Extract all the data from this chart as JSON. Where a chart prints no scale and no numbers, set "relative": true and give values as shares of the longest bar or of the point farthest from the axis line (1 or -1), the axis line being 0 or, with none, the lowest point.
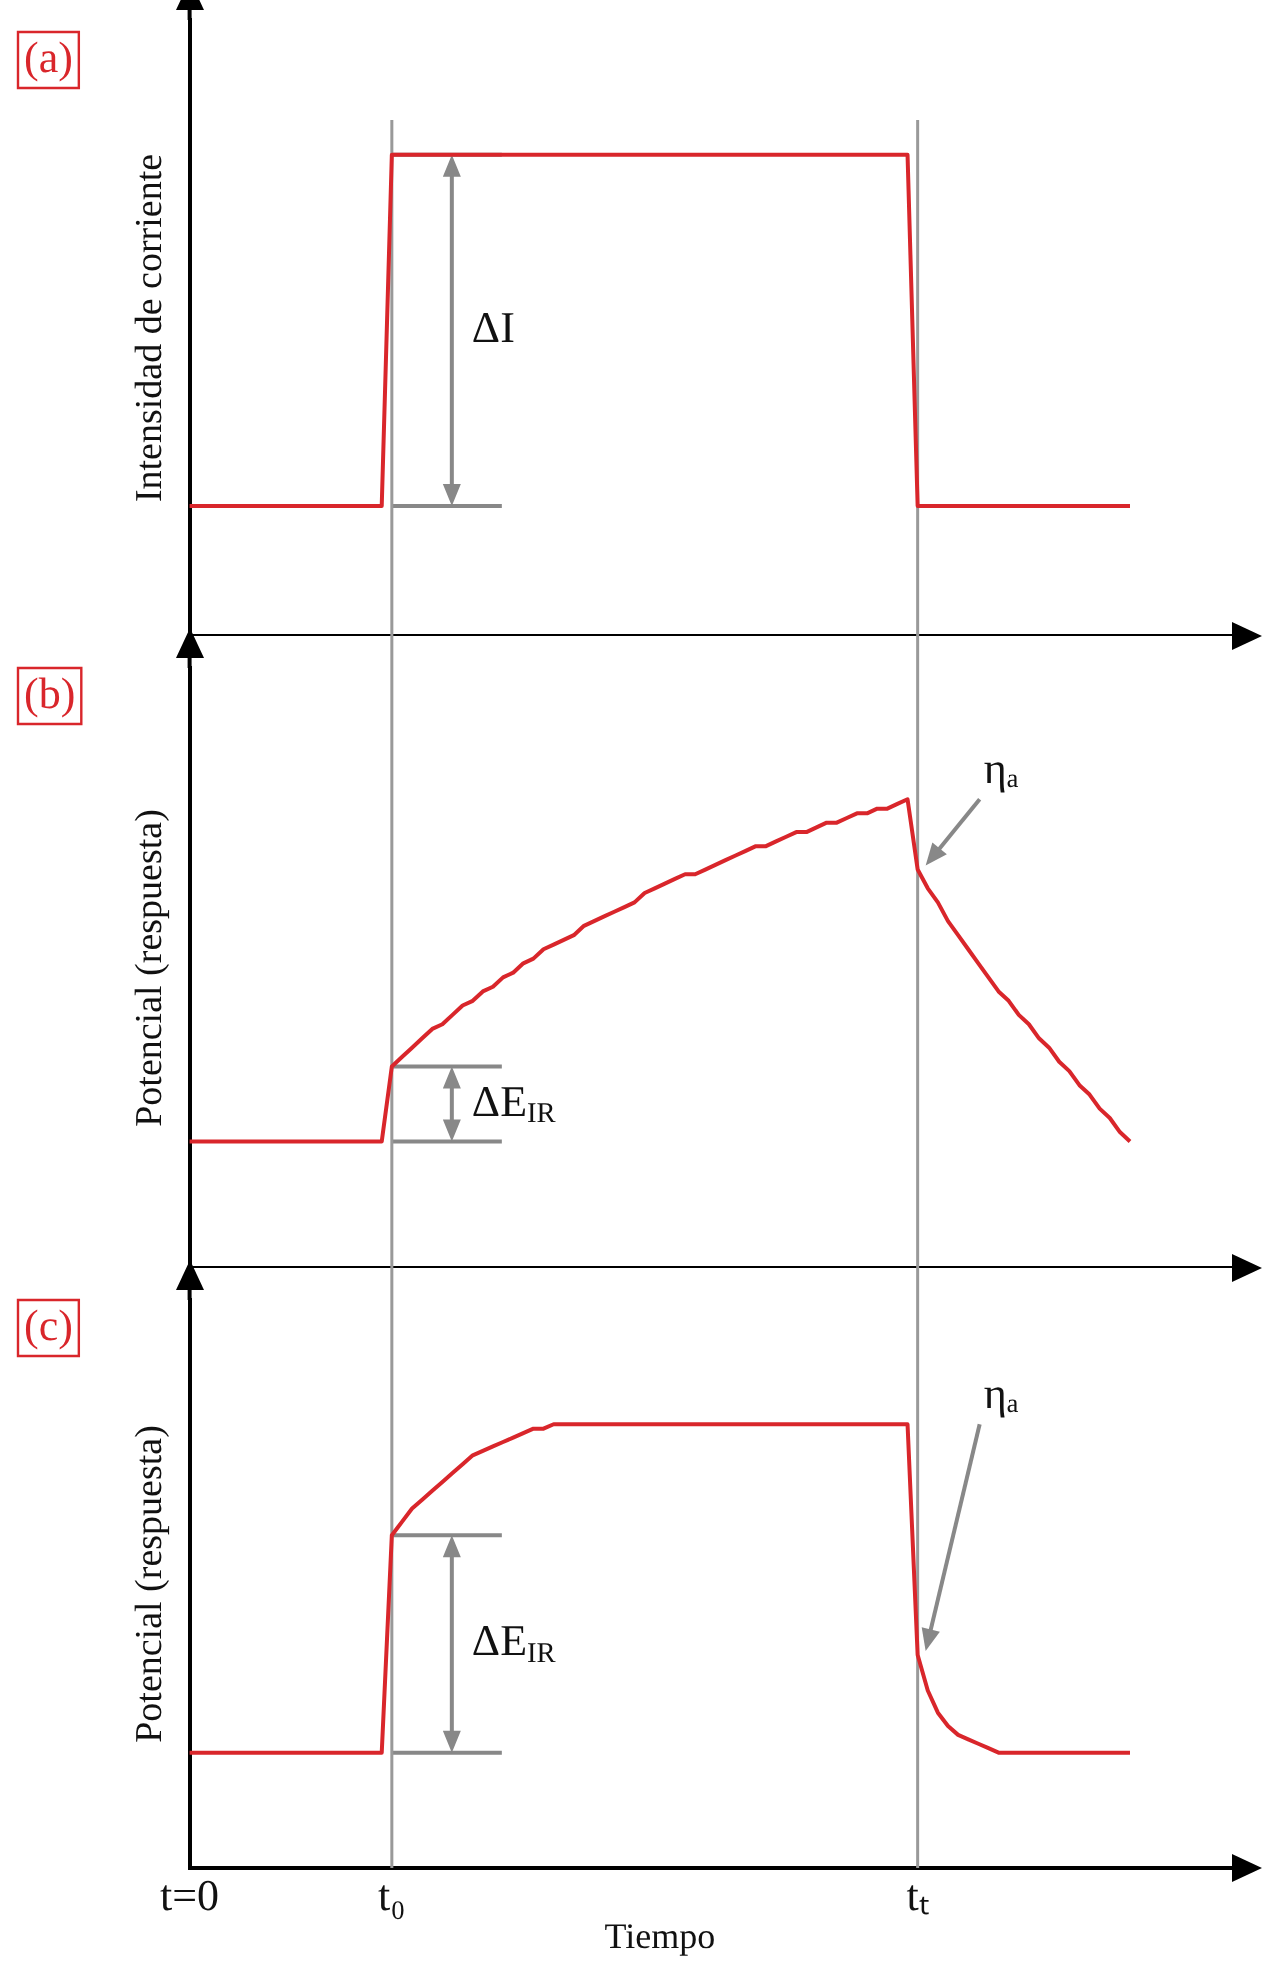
{
  "chart_data": [
    {
      "type": "line",
      "title": "(a)",
      "ylabel": "Intensidad de corriente",
      "relative": true,
      "grid": false,
      "legend": false,
      "marker": "none",
      "categories": [
        null,
        null,
        null,
        null,
        null,
        null,
        null,
        null,
        null,
        null,
        null,
        null,
        null,
        null,
        null,
        null,
        null,
        null,
        null,
        null,
        null,
        null,
        null,
        null,
        null,
        null,
        null,
        null,
        null,
        null,
        null,
        null,
        null,
        null,
        null,
        null,
        null,
        null,
        null,
        null,
        null,
        null,
        null,
        null,
        null,
        null,
        null,
        null,
        null,
        null,
        null,
        null,
        null,
        null,
        null,
        null,
        null,
        null,
        null,
        null,
        null,
        null,
        null,
        null,
        null,
        null,
        null,
        null,
        null,
        null,
        null,
        null,
        null,
        null,
        null,
        null,
        null,
        null,
        null,
        null,
        null,
        null,
        null,
        null,
        null,
        null,
        null,
        null,
        null,
        null,
        null,
        null,
        null,
        null
      ],
      "series": [
        {
          "color": "#d9262b",
          "values": [
            0.27,
            0.27,
            0.27,
            0.27,
            0.27,
            0.27,
            0.27,
            0.27,
            0.27,
            0.27,
            0.27,
            0.27,
            0.27,
            0.27,
            0.27,
            0.27,
            0.27,
            0.27,
            0.27,
            0.27,
            1,
            1,
            1,
            1,
            1,
            1,
            1,
            1,
            1,
            1,
            1,
            1,
            1,
            1,
            1,
            1,
            1,
            1,
            1,
            1,
            1,
            1,
            1,
            1,
            1,
            1,
            1,
            1,
            1,
            1,
            1,
            1,
            1,
            1,
            1,
            1,
            1,
            1,
            1,
            1,
            1,
            1,
            1,
            1,
            1,
            1,
            1,
            1,
            1,
            1,
            1,
            1,
            0.27,
            0.27,
            0.27,
            0.27,
            0.27,
            0.27,
            0.27,
            0.27,
            0.27,
            0.27,
            0.27,
            0.27,
            0.27,
            0.27,
            0.27,
            0.27,
            0.27,
            0.27,
            0.27,
            0.27,
            0.27,
            0.27
          ]
        }
      ],
      "annotations": [
        "ΔI"
      ]
    },
    {
      "type": "line",
      "title": "(b)",
      "ylabel": "Potencial (respuesta)",
      "relative": true,
      "grid": false,
      "legend": false,
      "marker": "none",
      "categories": [
        null,
        null,
        null,
        null,
        null,
        null,
        null,
        null,
        null,
        null,
        null,
        null,
        null,
        null,
        null,
        null,
        null,
        null,
        null,
        null,
        null,
        null,
        null,
        null,
        null,
        null,
        null,
        null,
        null,
        null,
        null,
        null,
        null,
        null,
        null,
        null,
        null,
        null,
        null,
        null,
        null,
        null,
        null,
        null,
        null,
        null,
        null,
        null,
        null,
        null,
        null,
        null,
        null,
        null,
        null,
        null,
        null,
        null,
        null,
        null,
        null,
        null,
        null,
        null,
        null,
        null,
        null,
        null,
        null,
        null,
        null,
        null,
        null,
        null,
        null,
        null,
        null,
        null,
        null,
        null,
        null,
        null,
        null,
        null,
        null,
        null,
        null,
        null,
        null,
        null,
        null,
        null,
        null,
        null
      ],
      "series": [
        {
          "color": "#d9262b",
          "values": [
            0.27,
            0.27,
            0.27,
            0.27,
            0.27,
            0.27,
            0.27,
            0.27,
            0.27,
            0.27,
            0.27,
            0.27,
            0.27,
            0.27,
            0.27,
            0.27,
            0.27,
            0.27,
            0.27,
            0.27,
            0.43,
            0.45,
            0.47,
            0.49,
            0.51,
            0.52,
            0.54,
            0.56,
            0.57,
            0.59,
            0.6,
            0.62,
            0.63,
            0.65,
            0.66,
            0.68,
            0.69,
            0.7,
            0.71,
            0.73,
            0.74,
            0.75,
            0.76,
            0.77,
            0.78,
            0.8,
            0.81,
            0.82,
            0.83,
            0.84,
            0.84,
            0.85,
            0.86,
            0.87,
            0.88,
            0.89,
            0.9,
            0.9,
            0.91,
            0.92,
            0.93,
            0.93,
            0.94,
            0.95,
            0.95,
            0.96,
            0.97,
            0.97,
            0.98,
            0.98,
            0.99,
            1,
            0.85,
            0.81,
            0.78,
            0.74,
            0.71,
            0.68,
            0.65,
            0.62,
            0.59,
            0.57,
            0.54,
            0.52,
            0.49,
            0.47,
            0.44,
            0.42,
            0.39,
            0.37,
            0.34,
            0.32,
            0.29,
            0.27
          ]
        }
      ],
      "annotations": [
        "ΔE$_{IR}$",
        "ηₐ"
      ]
    },
    {
      "type": "line",
      "title": "(c)",
      "ylabel": "Potencial (respuesta)",
      "xlabel": "Tiempo",
      "relative": true,
      "grid": false,
      "legend": false,
      "marker": "none",
      "categories": [
        "t=0",
        null,
        null,
        null,
        null,
        null,
        null,
        null,
        null,
        null,
        null,
        null,
        null,
        null,
        null,
        null,
        null,
        null,
        null,
        null,
        "t₀",
        null,
        null,
        null,
        null,
        null,
        null,
        null,
        null,
        null,
        null,
        null,
        null,
        null,
        null,
        null,
        null,
        null,
        null,
        null,
        null,
        null,
        null,
        null,
        null,
        null,
        null,
        null,
        null,
        null,
        null,
        null,
        null,
        null,
        null,
        null,
        null,
        null,
        null,
        null,
        null,
        null,
        null,
        null,
        null,
        null,
        null,
        null,
        null,
        null,
        null,
        null,
        "tₜ",
        null,
        null,
        null,
        null,
        null,
        null,
        null,
        null,
        null,
        null,
        null,
        null,
        null,
        null,
        null,
        null,
        null,
        null,
        null,
        null,
        null
      ],
      "series": [
        {
          "color": "#d9262b",
          "values": [
            0.26,
            0.26,
            0.26,
            0.26,
            0.26,
            0.26,
            0.26,
            0.26,
            0.26,
            0.26,
            0.26,
            0.26,
            0.26,
            0.26,
            0.26,
            0.26,
            0.26,
            0.26,
            0.26,
            0.26,
            0.75,
            0.78,
            0.81,
            0.83,
            0.85,
            0.87,
            0.89,
            0.91,
            0.93,
            0.94,
            0.95,
            0.96,
            0.97,
            0.98,
            0.99,
            0.99,
            1,
            1,
            1,
            1,
            1,
            1,
            1,
            1,
            1,
            1,
            1,
            1,
            1,
            1,
            1,
            1,
            1,
            1,
            1,
            1,
            1,
            1,
            1,
            1,
            1,
            1,
            1,
            1,
            1,
            1,
            1,
            1,
            1,
            1,
            1,
            1,
            0.48,
            0.4,
            0.35,
            0.32,
            0.3,
            0.29,
            0.28,
            0.27,
            0.26,
            0.26,
            0.26,
            0.26,
            0.26,
            0.26,
            0.26,
            0.26,
            0.26,
            0.26,
            0.26,
            0.26,
            0.26,
            0.26
          ]
        }
      ],
      "ref_lines": [
        {
          "axis": "x",
          "value": "t₀",
          "color": "#999999"
        },
        {
          "axis": "x",
          "value": "tₜ",
          "color": "#999999"
        }
      ],
      "annotations": [
        "ΔE$_{IR}$",
        "ηₐ"
      ]
    }
  ]
}
